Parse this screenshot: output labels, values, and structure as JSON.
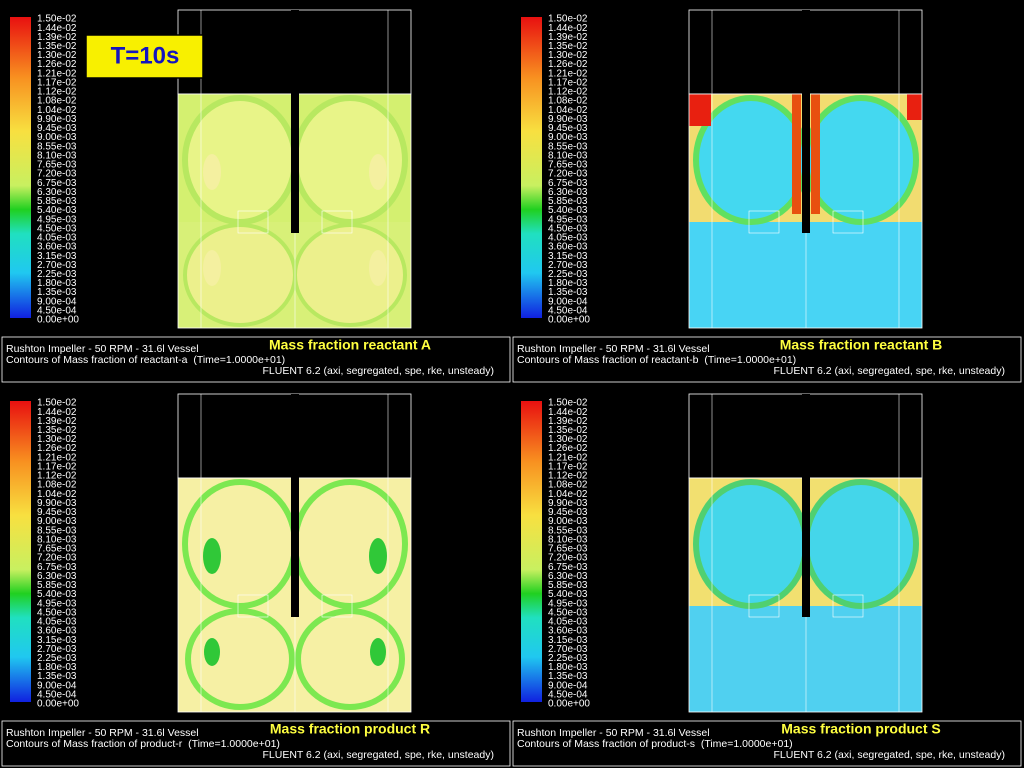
{
  "badge": "T=10s",
  "colorbar_labels": [
    "1.50e-02",
    "1.44e-02",
    "1.39e-02",
    "1.35e-02",
    "1.30e-02",
    "1.26e-02",
    "1.21e-02",
    "1.17e-02",
    "1.12e-02",
    "1.08e-02",
    "1.04e-02",
    "9.90e-03",
    "9.45e-03",
    "9.00e-03",
    "8.55e-03",
    "8.10e-03",
    "7.65e-03",
    "7.20e-03",
    "6.75e-03",
    "6.30e-03",
    "5.85e-03",
    "5.40e-03",
    "4.95e-03",
    "4.50e-03",
    "4.05e-03",
    "3.60e-03",
    "3.15e-03",
    "2.70e-03",
    "2.25e-03",
    "1.80e-03",
    "1.35e-03",
    "9.00e-04",
    "4.50e-04",
    "0.00e+00"
  ],
  "panels": [
    {
      "title": "Mass fraction reactant A",
      "lines": [
        "Rushton Impeller - 50 RPM - 31.6l Vessel",
        "Contours of Mass fraction of reactant-a  (Time=1.0000e+01)",
        "FLUENT 6.2 (axi, segregated, spe, rke, unsteady)"
      ]
    },
    {
      "title": "Mass fraction reactant B",
      "lines": [
        "Rushton Impeller - 50 RPM - 31.6l Vessel",
        "Contours of Mass fraction of reactant-b  (Time=1.0000e+01)",
        "FLUENT 6.2 (axi, segregated, spe, rke, unsteady)"
      ]
    },
    {
      "title": "Mass fraction product R",
      "lines": [
        "Rushton Impeller - 50 RPM - 31.6l Vessel",
        "Contours of Mass fraction of product-r  (Time=1.0000e+01)",
        "FLUENT 6.2 (axi, segregated, spe, rke, unsteady)"
      ]
    },
    {
      "title": "Mass fraction product S",
      "lines": [
        "Rushton Impeller - 50 RPM - 31.6l Vessel",
        "Contours of Mass fraction of product-s  (Time=1.0000e+01)",
        "FLUENT 6.2 (axi, segregated, spe, rke, unsteady)"
      ]
    }
  ]
}
